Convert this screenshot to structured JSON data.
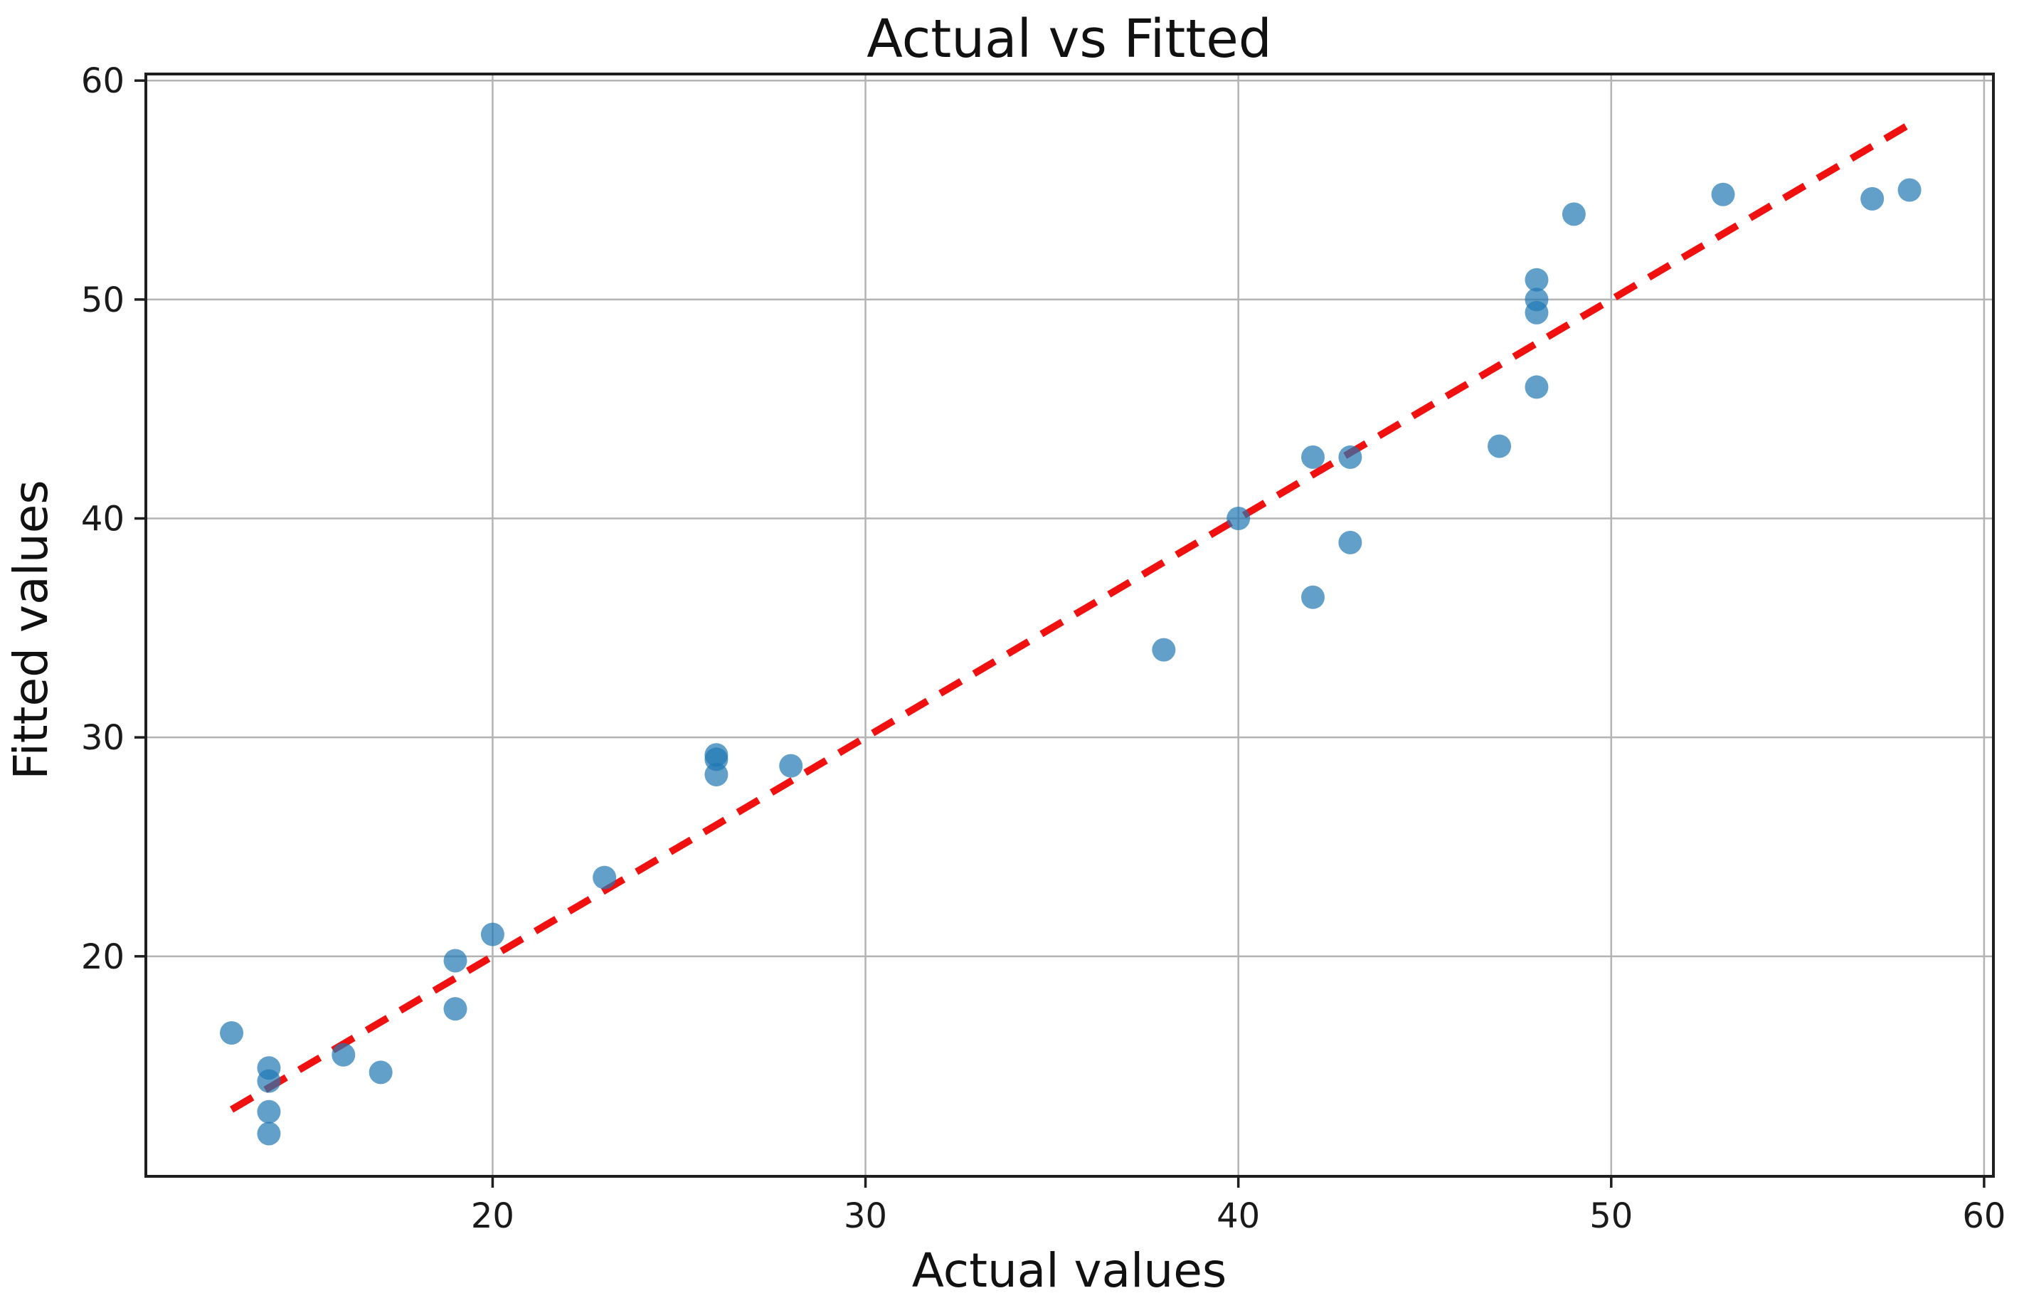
{
  "chart_data": {
    "type": "scatter",
    "title": "Actual vs Fitted",
    "xlabel": "Actual values",
    "ylabel": "Fitted values",
    "xlim": [
      10.7,
      60.25
    ],
    "ylim": [
      9.95,
      60.3
    ],
    "xticks": [
      20,
      30,
      40,
      50,
      60
    ],
    "yticks": [
      20,
      30,
      40,
      50,
      60
    ],
    "grid": true,
    "legend": "none",
    "series": [
      {
        "name": "points",
        "marker": "circle",
        "points": [
          [
            13,
            16.5
          ],
          [
            14,
            14.9
          ],
          [
            14,
            14.3
          ],
          [
            14,
            12.9
          ],
          [
            14,
            11.9
          ],
          [
            16,
            15.5
          ],
          [
            17,
            14.7
          ],
          [
            19,
            17.6
          ],
          [
            19,
            19.8
          ],
          [
            20,
            21.0
          ],
          [
            23,
            23.6
          ],
          [
            26,
            29.2
          ],
          [
            26,
            29.0
          ],
          [
            26,
            28.3
          ],
          [
            28,
            28.7
          ],
          [
            38,
            34.0
          ],
          [
            40,
            40.0
          ],
          [
            42,
            36.4
          ],
          [
            42,
            42.8
          ],
          [
            43,
            38.9
          ],
          [
            43,
            42.8
          ],
          [
            47,
            43.3
          ],
          [
            48,
            46.0
          ],
          [
            48,
            49.4
          ],
          [
            48,
            50.0
          ],
          [
            48,
            50.9
          ],
          [
            49,
            53.9
          ],
          [
            53,
            54.8
          ],
          [
            57,
            54.6
          ],
          [
            58,
            55.0
          ]
        ]
      }
    ],
    "identity_line": {
      "x1": 13,
      "y1": 13,
      "x2": 58,
      "y2": 58,
      "style": "dashed"
    },
    "colors": {
      "marker": "#1f77b4",
      "marker_alpha": 0.7,
      "line": "#f01010",
      "grid": "#b3b3b3",
      "spine": "#1f1f1f",
      "text": "#111111"
    }
  }
}
